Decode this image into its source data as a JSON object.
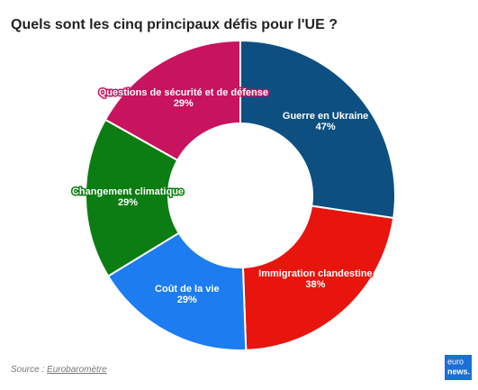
{
  "chart_data": {
    "type": "donut",
    "title": "Quels sont les cinq principaux défis pour l'UE ?",
    "categories": [
      "Guerre en Ukraine",
      "Immigration clandestine",
      "Coût de la vie",
      "Changement climatique",
      "Questions de sécurité et de défense"
    ],
    "values": [
      47,
      38,
      29,
      29,
      29
    ],
    "value_labels": [
      "47%",
      "38%",
      "29%",
      "29%",
      "29%"
    ],
    "colors": [
      "#0d4f80",
      "#e8140e",
      "#1c7cf0",
      "#0b7d12",
      "#c8135f"
    ],
    "source_label": "Source :",
    "source": "Eurobaromètre",
    "logo": [
      "euro",
      "news."
    ]
  }
}
